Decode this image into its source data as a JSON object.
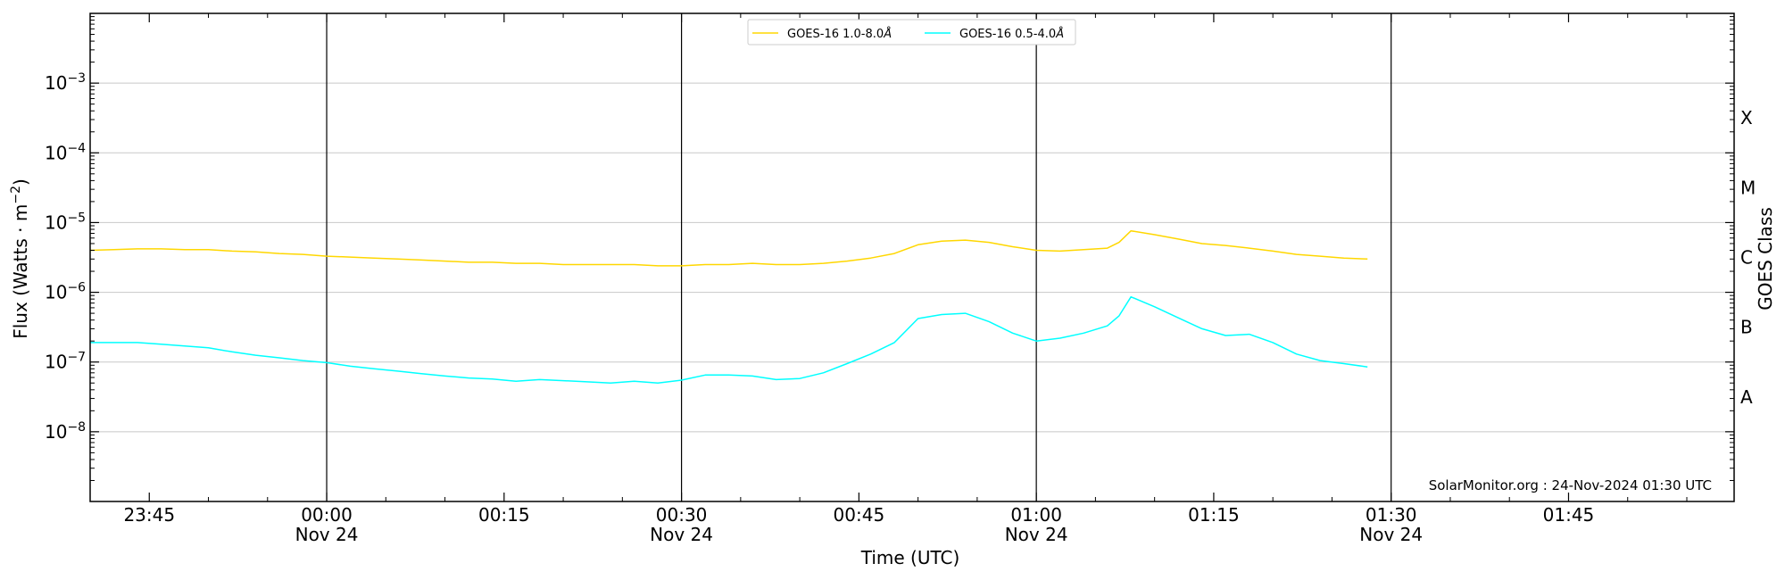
{
  "chart_data": {
    "type": "line",
    "ylabel_main": "Flux (Watts · m",
    "ylabel_exp": "−2",
    "ylabel_close": ")",
    "xlabel": "Time (UTC)",
    "right_label": "GOES Class",
    "credit": "SolarMonitor.org : 24-Nov-2024 01:30 UTC",
    "yscale": "log",
    "ylim": [
      1e-09,
      0.01
    ],
    "xlim": [
      "2024-11-23 23:40",
      "2024-11-24 01:59"
    ],
    "grid": {
      "horizontal": true
    },
    "y_ticks": [
      {
        "value": 1e-08,
        "base": "10",
        "exp": "−8"
      },
      {
        "value": 1e-07,
        "base": "10",
        "exp": "−7"
      },
      {
        "value": 1e-06,
        "base": "10",
        "exp": "−6"
      },
      {
        "value": 1e-05,
        "base": "10",
        "exp": "−5"
      },
      {
        "value": 0.0001,
        "base": "10",
        "exp": "−4"
      },
      {
        "value": 0.001,
        "base": "10",
        "exp": "−3"
      }
    ],
    "class_labels": [
      {
        "label": "A",
        "value": 3.16e-08
      },
      {
        "label": "B",
        "value": 3.16e-07
      },
      {
        "label": "C",
        "value": 3.16e-06
      },
      {
        "label": "M",
        "value": 3.16e-05
      },
      {
        "label": "X",
        "value": 0.000316
      }
    ],
    "x_ticks": [
      {
        "time": "2024-11-23 23:45",
        "label": "23:45",
        "sublabel": ""
      },
      {
        "time": "2024-11-24 00:00",
        "label": "00:00",
        "sublabel": "Nov 24"
      },
      {
        "time": "2024-11-24 00:15",
        "label": "00:15",
        "sublabel": ""
      },
      {
        "time": "2024-11-24 00:30",
        "label": "00:30",
        "sublabel": "Nov 24"
      },
      {
        "time": "2024-11-24 00:45",
        "label": "00:45",
        "sublabel": ""
      },
      {
        "time": "2024-11-24 01:00",
        "label": "01:00",
        "sublabel": "Nov 24"
      },
      {
        "time": "2024-11-24 01:15",
        "label": "01:15",
        "sublabel": ""
      },
      {
        "time": "2024-11-24 01:30",
        "label": "01:30",
        "sublabel": "Nov 24"
      },
      {
        "time": "2024-11-24 01:45",
        "label": "01:45",
        "sublabel": ""
      }
    ],
    "vertical_lines": [
      "2024-11-24 00:00",
      "2024-11-24 00:30",
      "2024-11-24 01:00",
      "2024-11-24 01:30"
    ],
    "legend_position": "top-center",
    "series": [
      {
        "name": "GOES-16 1.0-8.0",
        "name_unit": "Å",
        "color": "#ffd700",
        "x": [
          "2024-11-23 23:40",
          "2024-11-23 23:42",
          "2024-11-23 23:44",
          "2024-11-23 23:46",
          "2024-11-23 23:48",
          "2024-11-23 23:50",
          "2024-11-23 23:52",
          "2024-11-23 23:54",
          "2024-11-23 23:56",
          "2024-11-23 23:58",
          "2024-11-24 00:00",
          "2024-11-24 00:02",
          "2024-11-24 00:04",
          "2024-11-24 00:06",
          "2024-11-24 00:08",
          "2024-11-24 00:10",
          "2024-11-24 00:12",
          "2024-11-24 00:14",
          "2024-11-24 00:16",
          "2024-11-24 00:18",
          "2024-11-24 00:20",
          "2024-11-24 00:22",
          "2024-11-24 00:24",
          "2024-11-24 00:26",
          "2024-11-24 00:28",
          "2024-11-24 00:30",
          "2024-11-24 00:32",
          "2024-11-24 00:34",
          "2024-11-24 00:36",
          "2024-11-24 00:38",
          "2024-11-24 00:40",
          "2024-11-24 00:42",
          "2024-11-24 00:44",
          "2024-11-24 00:46",
          "2024-11-24 00:48",
          "2024-11-24 00:50",
          "2024-11-24 00:52",
          "2024-11-24 00:54",
          "2024-11-24 00:56",
          "2024-11-24 00:58",
          "2024-11-24 01:00",
          "2024-11-24 01:02",
          "2024-11-24 01:04",
          "2024-11-24 01:06",
          "2024-11-24 01:07",
          "2024-11-24 01:08",
          "2024-11-24 01:10",
          "2024-11-24 01:12",
          "2024-11-24 01:14",
          "2024-11-24 01:16",
          "2024-11-24 01:18",
          "2024-11-24 01:20",
          "2024-11-24 01:22",
          "2024-11-24 01:24",
          "2024-11-24 01:26",
          "2024-11-24 01:28"
        ],
        "values": [
          4e-06,
          4.1e-06,
          4.2e-06,
          4.2e-06,
          4.1e-06,
          4.1e-06,
          3.9e-06,
          3.8e-06,
          3.6e-06,
          3.5e-06,
          3.3e-06,
          3.2e-06,
          3.1e-06,
          3e-06,
          2.9e-06,
          2.8e-06,
          2.7e-06,
          2.7e-06,
          2.6e-06,
          2.6e-06,
          2.5e-06,
          2.5e-06,
          2.5e-06,
          2.5e-06,
          2.4e-06,
          2.4e-06,
          2.5e-06,
          2.5e-06,
          2.6e-06,
          2.5e-06,
          2.5e-06,
          2.6e-06,
          2.8e-06,
          3.1e-06,
          3.6e-06,
          4.8e-06,
          5.4e-06,
          5.6e-06,
          5.2e-06,
          4.5e-06,
          4e-06,
          3.9e-06,
          4.1e-06,
          4.3e-06,
          5.2e-06,
          7.6e-06,
          6.7e-06,
          5.8e-06,
          5e-06,
          4.7e-06,
          4.3e-06,
          3.9e-06,
          3.5e-06,
          3.3e-06,
          3.1e-06,
          3e-06
        ]
      },
      {
        "name": "GOES-16 0.5-4.0",
        "name_unit": "Å",
        "color": "#00ffff",
        "x": [
          "2024-11-23 23:40",
          "2024-11-23 23:42",
          "2024-11-23 23:44",
          "2024-11-23 23:46",
          "2024-11-23 23:48",
          "2024-11-23 23:50",
          "2024-11-23 23:52",
          "2024-11-23 23:54",
          "2024-11-23 23:56",
          "2024-11-23 23:58",
          "2024-11-24 00:00",
          "2024-11-24 00:02",
          "2024-11-24 00:04",
          "2024-11-24 00:06",
          "2024-11-24 00:08",
          "2024-11-24 00:10",
          "2024-11-24 00:12",
          "2024-11-24 00:14",
          "2024-11-24 00:16",
          "2024-11-24 00:18",
          "2024-11-24 00:20",
          "2024-11-24 00:22",
          "2024-11-24 00:24",
          "2024-11-24 00:26",
          "2024-11-24 00:28",
          "2024-11-24 00:30",
          "2024-11-24 00:32",
          "2024-11-24 00:34",
          "2024-11-24 00:36",
          "2024-11-24 00:38",
          "2024-11-24 00:40",
          "2024-11-24 00:42",
          "2024-11-24 00:44",
          "2024-11-24 00:46",
          "2024-11-24 00:48",
          "2024-11-24 00:50",
          "2024-11-24 00:52",
          "2024-11-24 00:54",
          "2024-11-24 00:56",
          "2024-11-24 00:58",
          "2024-11-24 01:00",
          "2024-11-24 01:02",
          "2024-11-24 01:04",
          "2024-11-24 01:06",
          "2024-11-24 01:07",
          "2024-11-24 01:08",
          "2024-11-24 01:10",
          "2024-11-24 01:12",
          "2024-11-24 01:14",
          "2024-11-24 01:16",
          "2024-11-24 01:18",
          "2024-11-24 01:20",
          "2024-11-24 01:22",
          "2024-11-24 01:24",
          "2024-11-24 01:26",
          "2024-11-24 01:28"
        ],
        "values": [
          1.9e-07,
          1.9e-07,
          1.9e-07,
          1.8e-07,
          1.7e-07,
          1.6e-07,
          1.4e-07,
          1.25e-07,
          1.15e-07,
          1.05e-07,
          9.8e-08,
          8.7e-08,
          8e-08,
          7.4e-08,
          6.8e-08,
          6.3e-08,
          5.9e-08,
          5.7e-08,
          5.3e-08,
          5.6e-08,
          5.4e-08,
          5.2e-08,
          5e-08,
          5.3e-08,
          5e-08,
          5.5e-08,
          6.5e-08,
          6.5e-08,
          6.3e-08,
          5.6e-08,
          5.8e-08,
          7e-08,
          9.5e-08,
          1.3e-07,
          1.9e-07,
          4.2e-07,
          4.8e-07,
          5e-07,
          3.8e-07,
          2.6e-07,
          2e-07,
          2.2e-07,
          2.6e-07,
          3.3e-07,
          4.6e-07,
          8.6e-07,
          6.2e-07,
          4.3e-07,
          3e-07,
          2.4e-07,
          2.5e-07,
          1.9e-07,
          1.3e-07,
          1.05e-07,
          9.5e-08,
          8.5e-08
        ]
      }
    ]
  }
}
